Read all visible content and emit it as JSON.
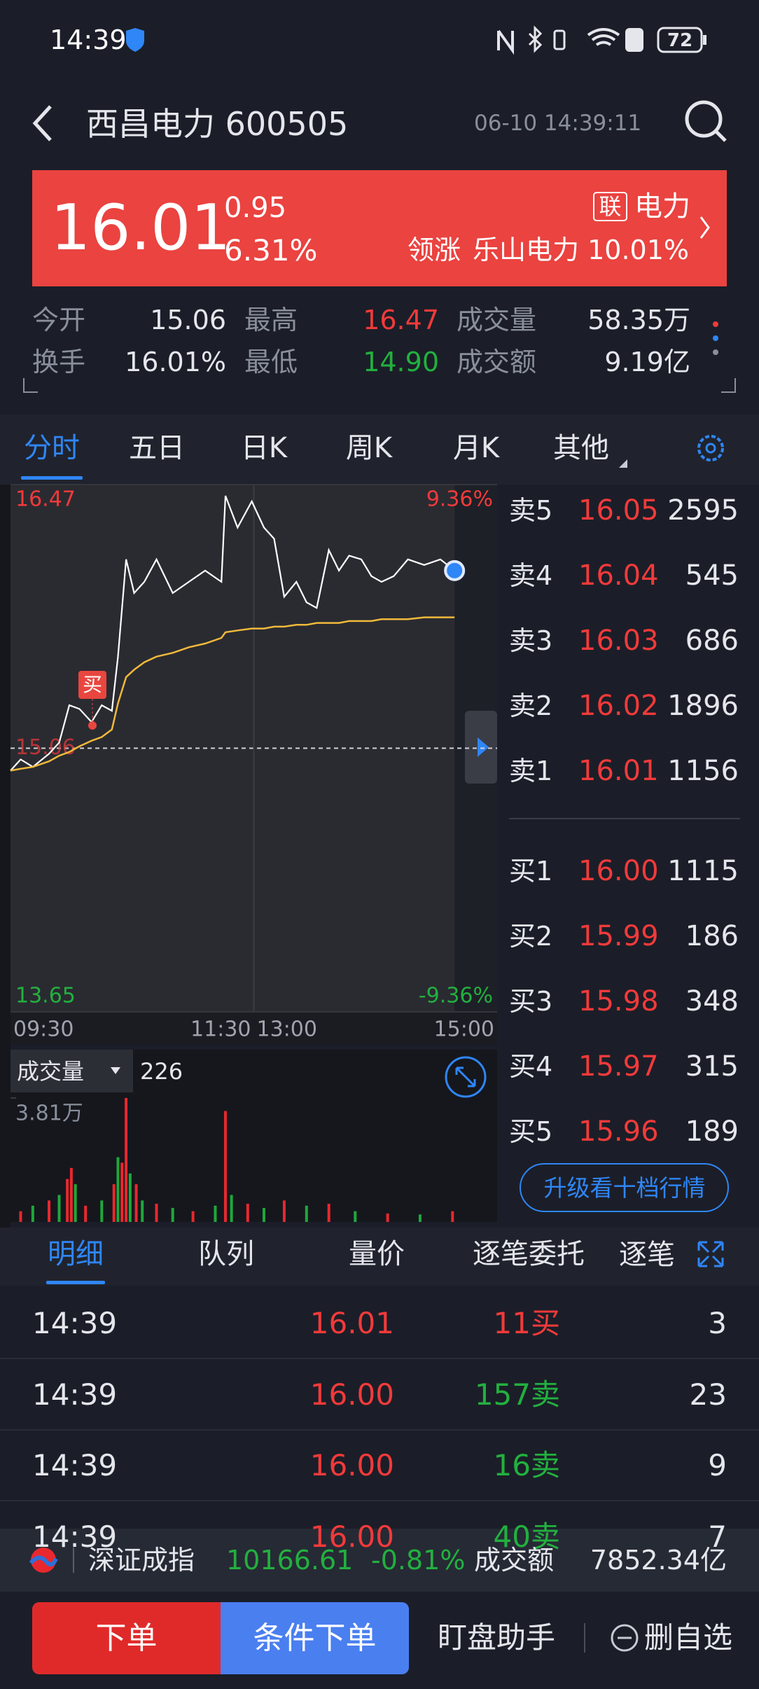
{
  "status_bar": {
    "time": "14:39",
    "battery": "72"
  },
  "header": {
    "title": "西昌电力 600505",
    "datetime": "06-10 14:39:11"
  },
  "quote": {
    "price": "16.01",
    "change": "0.95",
    "change_pct": "6.31%",
    "tag": "联",
    "sector": "电力",
    "leader_label": "领涨",
    "leader": "乐山电力 10.01%"
  },
  "stats": [
    {
      "label": "今开",
      "value": "15.06"
    },
    {
      "label": "最高",
      "value": "16.47"
    },
    {
      "label": "成交量",
      "value": "58.35万"
    },
    {
      "label": "换手",
      "value": "16.01%"
    },
    {
      "label": "最低",
      "value": "14.90"
    },
    {
      "label": "成交额",
      "value": "9.19亿"
    }
  ],
  "chart_tabs": [
    "分时",
    "五日",
    "日K",
    "周K",
    "月K",
    "其他"
  ],
  "chart_data": [
    {
      "type": "line",
      "x": [
        "09:30",
        "09:35",
        "09:41",
        "09:49",
        "09:54",
        "09:59",
        "10:04",
        "10:10",
        "10:15",
        "10:20",
        "10:23",
        "10:27",
        "10:31",
        "10:36",
        "10:42",
        "10:50",
        "10:58",
        "11:06",
        "11:14",
        "11:16",
        "11:22",
        "11:29",
        "13:05",
        "13:10",
        "13:15",
        "13:21",
        "13:26",
        "13:31",
        "13:37",
        "13:42",
        "13:47",
        "13:53",
        "13:58",
        "14:03",
        "14:09",
        "14:16",
        "14:24",
        "14:32",
        "14:39"
      ],
      "series": [
        {
          "color": "#ffffff",
          "values": [
            14.94,
            15.0,
            14.96,
            15.03,
            15.09,
            15.29,
            15.27,
            15.2,
            15.29,
            15.26,
            15.55,
            16.07,
            15.89,
            15.95,
            16.07,
            15.89,
            15.95,
            16.01,
            15.95,
            16.41,
            16.24,
            16.38,
            16.24,
            16.18,
            15.87,
            15.95,
            15.84,
            15.81,
            16.12,
            16.01,
            16.09,
            16.07,
            15.98,
            15.95,
            15.98,
            16.07,
            16.04,
            16.07,
            16.01
          ]
        },
        {
          "color": "#f0b93a",
          "values": [
            14.94,
            14.95,
            14.96,
            14.99,
            15.02,
            15.04,
            15.07,
            15.1,
            15.12,
            15.16,
            15.3,
            15.44,
            15.48,
            15.52,
            15.55,
            15.57,
            15.6,
            15.62,
            15.65,
            15.68,
            15.69,
            15.7,
            15.7,
            15.71,
            15.71,
            15.72,
            15.72,
            15.73,
            15.73,
            15.73,
            15.74,
            15.74,
            15.74,
            15.75,
            15.75,
            15.75,
            15.76,
            15.76,
            15.76
          ]
        }
      ],
      "xlim": [
        "09:30",
        "15:00"
      ],
      "xticks": [
        "09:30",
        "11:30",
        "13:00",
        "15:00"
      ],
      "ylim": [
        13.65,
        16.47
      ],
      "yticks": [
        16.47,
        15.06,
        13.65
      ],
      "y2lim": [
        -9.36,
        9.36
      ],
      "y2ticks": [
        {
          "value": 9.36,
          "label": "9.36%"
        },
        {
          "value": -9.36,
          "label": "-9.36%"
        }
      ],
      "buy_marker": "买"
    },
    {
      "type": "bar",
      "title": "成交量",
      "current": "226",
      "x": [
        "09:35",
        "09:41",
        "09:49",
        "09:54",
        "09:58",
        "10:00",
        "10:02",
        "10:07",
        "10:15",
        "10:21",
        "10:23",
        "10:25",
        "10:27",
        "10:29",
        "10:32",
        "10:35",
        "10:42",
        "10:50",
        "11:00",
        "11:11",
        "11:16",
        "11:19",
        "11:27",
        "13:05",
        "13:15",
        "13:26",
        "13:37",
        "13:50",
        "14:06",
        "14:22",
        "14:38"
      ],
      "values": [
        3300,
        5000,
        6600,
        8300,
        13200,
        16600,
        11600,
        5000,
        6600,
        11600,
        19900,
        18200,
        38100,
        14900,
        11600,
        6600,
        5600,
        4300,
        3300,
        5000,
        34100,
        8300,
        5600,
        4300,
        6600,
        5000,
        5600,
        3300,
        2600,
        2300,
        3300
      ],
      "colors": [
        "#e8282e",
        "#1fa83a",
        "#e8282e",
        "#1fa83a",
        "#e8282e",
        "#e8282e",
        "#1fa83a",
        "#e8282e",
        "#1fa83a",
        "#e8282e",
        "#1fa83a",
        "#e8282e",
        "#e8282e",
        "#1fa83a",
        "#e8282e",
        "#1fa83a",
        "#e8282e",
        "#1fa83a",
        "#e8282e",
        "#1fa83a",
        "#e8282e",
        "#1fa83a",
        "#e8282e",
        "#1fa83a",
        "#e8282e",
        "#1fa83a",
        "#e8282e",
        "#1fa83a",
        "#e8282e",
        "#1fa83a",
        "#e8282e"
      ],
      "xlim": [
        "09:30",
        "15:00"
      ],
      "ylim": [
        0,
        38100
      ],
      "yticks": [
        {
          "value": 38100,
          "label": "3.81万"
        }
      ]
    }
  ],
  "order_book": {
    "asks": [
      {
        "label": "卖5",
        "price": "16.05",
        "volume": "2595"
      },
      {
        "label": "卖4",
        "price": "16.04",
        "volume": "545"
      },
      {
        "label": "卖3",
        "price": "16.03",
        "volume": "686"
      },
      {
        "label": "卖2",
        "price": "16.02",
        "volume": "1896"
      },
      {
        "label": "卖1",
        "price": "16.01",
        "volume": "1156"
      }
    ],
    "bids": [
      {
        "label": "买1",
        "price": "16.00",
        "volume": "1115"
      },
      {
        "label": "买2",
        "price": "15.99",
        "volume": "186"
      },
      {
        "label": "买3",
        "price": "15.98",
        "volume": "348"
      },
      {
        "label": "买4",
        "price": "15.97",
        "volume": "315"
      },
      {
        "label": "买5",
        "price": "15.96",
        "volume": "189"
      }
    ],
    "button": "升级看十档行情"
  },
  "detail_tabs": [
    "明细",
    "队列",
    "量价",
    "逐笔委托",
    "逐笔"
  ],
  "trades": [
    [
      "14:39",
      "16.01",
      "11买",
      "3"
    ],
    [
      "14:39",
      "16.00",
      "157卖",
      "23"
    ],
    [
      "14:39",
      "16.00",
      "16卖",
      "9"
    ],
    [
      "14:39",
      "16.00",
      "40卖",
      "7"
    ]
  ],
  "index_bar": {
    "name": "深证成指",
    "value": "10166.61",
    "change": "-0.81%",
    "amount_label": "成交额",
    "amount": "7852.34亿"
  },
  "footer": {
    "order": "下单",
    "conditional": "条件下单",
    "assistant": "盯盘助手",
    "remove": "删自选"
  }
}
